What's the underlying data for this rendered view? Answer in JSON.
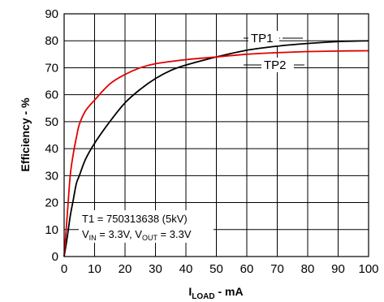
{
  "chart_data": {
    "type": "line",
    "title": "",
    "xlabel": {
      "main": "I",
      "sub": "LOAD",
      "rest": " - mA"
    },
    "ylabel": "Efficiency - %",
    "xlim": [
      0,
      100
    ],
    "ylim": [
      0,
      90
    ],
    "xticks": [
      0,
      10,
      20,
      30,
      40,
      50,
      60,
      70,
      80,
      90,
      100
    ],
    "yticks": [
      0,
      10,
      20,
      30,
      40,
      50,
      60,
      70,
      80,
      90
    ],
    "grid": true,
    "series": [
      {
        "name": "TP1",
        "color": "#000000",
        "x": [
          0,
          1,
          2,
          3,
          4,
          5,
          7,
          10,
          15,
          20,
          25,
          30,
          35,
          40,
          50,
          60,
          70,
          80,
          90,
          100
        ],
        "y": [
          0,
          7,
          15,
          21,
          27,
          30,
          36,
          42,
          50,
          57,
          62,
          66,
          69,
          71,
          74,
          76.5,
          78,
          79,
          79.7,
          80
        ]
      },
      {
        "name": "TP2",
        "color": "#e00000",
        "x": [
          0,
          1,
          2,
          3,
          4,
          5,
          7,
          10,
          15,
          20,
          25,
          30,
          40,
          50,
          60,
          70,
          80,
          90,
          100
        ],
        "y": [
          0,
          15,
          30,
          38,
          44,
          49,
          54,
          58,
          64,
          67.5,
          70,
          71.5,
          73,
          74,
          75,
          75.6,
          76,
          76.2,
          76.3
        ]
      }
    ],
    "annotations": {
      "line1": "T1 = 750313638 (5kV)",
      "line2": {
        "vin_main": "V",
        "vin_sub": "IN",
        "vin_rest": " = 3.3V, ",
        "vout_main": "V",
        "vout_sub": "OUT",
        "vout_rest": " = 3.3V"
      }
    }
  }
}
